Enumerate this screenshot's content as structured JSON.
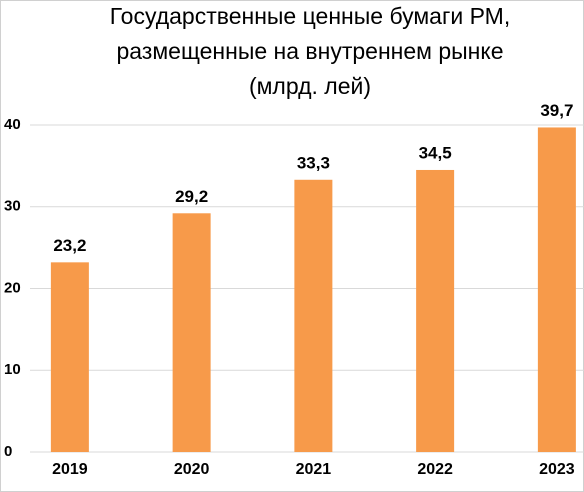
{
  "chart_data": {
    "type": "bar",
    "title": [
      "Государственные ценные бумаги РМ,",
      "размещенные на внутреннем рынке",
      "(млрд. лей)"
    ],
    "categories": [
      "2019",
      "2020",
      "2021",
      "2022",
      "2023"
    ],
    "values": [
      23.2,
      29.2,
      33.3,
      34.5,
      39.7
    ],
    "value_labels": [
      "23,2",
      "29,2",
      "33,3",
      "34,5",
      "39,7"
    ],
    "color": "#f79a4a",
    "ylim": [
      0,
      40
    ],
    "yticks": [
      0,
      10,
      20,
      30,
      40
    ],
    "grid": true
  }
}
